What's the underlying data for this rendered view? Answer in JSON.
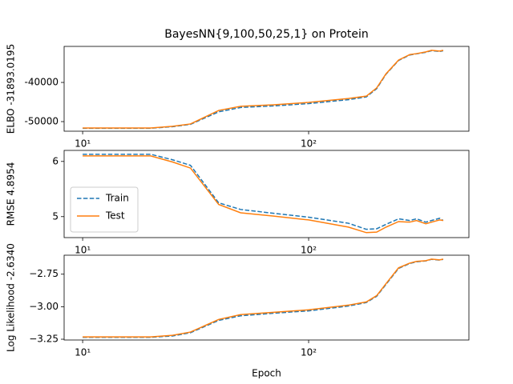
{
  "chart_data": [
    {
      "type": "line",
      "title": "BayesNN{9,100,50,25,1} on Protein",
      "y_label": "ELBO -31893.0195",
      "x": [
        10,
        20,
        25,
        30,
        40,
        50,
        70,
        100,
        150,
        180,
        200,
        220,
        250,
        280,
        300,
        330,
        350,
        380,
        394
      ],
      "series": [
        {
          "name": "Train",
          "color": "#1f77b4",
          "linestyle": "dashed",
          "values": [
            -51700,
            -51700,
            -51300,
            -50700,
            -47500,
            -46400,
            -46000,
            -45400,
            -44400,
            -43700,
            -41600,
            -37900,
            -34400,
            -33000,
            -32700,
            -32300,
            -31900,
            -32100,
            -31900
          ]
        },
        {
          "name": "Test",
          "color": "#ff7f0e",
          "linestyle": "solid",
          "values": [
            -51630,
            -51630,
            -51200,
            -50600,
            -47150,
            -46100,
            -45700,
            -45100,
            -44100,
            -43500,
            -41400,
            -37800,
            -34300,
            -32900,
            -32650,
            -32200,
            -31800,
            -32000,
            -31800
          ]
        }
      ],
      "xlim": [
        8.28,
        512
      ],
      "xticks": [
        {
          "value": 10,
          "label": "10¹"
        },
        {
          "value": 100,
          "label": "10²"
        }
      ],
      "log_x": true,
      "ylim": [
        -52450,
        -30800
      ],
      "yticks": [
        -50000,
        -40000
      ],
      "grid": false
    },
    {
      "type": "line",
      "y_label": "RMSE 4.8954",
      "x": [
        10,
        20,
        25,
        30,
        40,
        50,
        70,
        100,
        150,
        180,
        200,
        220,
        250,
        280,
        300,
        330,
        350,
        380,
        394
      ],
      "series": [
        {
          "name": "Train",
          "color": "#1f77b4",
          "linestyle": "dashed",
          "values": [
            6.13,
            6.13,
            6.03,
            5.93,
            5.25,
            5.13,
            5.06,
            4.99,
            4.88,
            4.77,
            4.78,
            4.86,
            4.96,
            4.93,
            4.96,
            4.9,
            4.93,
            4.97,
            4.93
          ]
        },
        {
          "name": "Test",
          "color": "#ff7f0e",
          "linestyle": "solid",
          "values": [
            6.1,
            6.1,
            5.99,
            5.88,
            5.22,
            5.07,
            5.01,
            4.94,
            4.81,
            4.71,
            4.72,
            4.81,
            4.91,
            4.9,
            4.93,
            4.87,
            4.9,
            4.94,
            4.93
          ]
        }
      ],
      "xlim": [
        8.28,
        512
      ],
      "xticks": [
        {
          "value": 10,
          "label": "10¹"
        },
        {
          "value": 100,
          "label": "10²"
        }
      ],
      "log_x": true,
      "ylim": [
        4.62,
        6.2
      ],
      "yticks": [
        5,
        6
      ],
      "grid": false,
      "legend": "lower left"
    },
    {
      "type": "line",
      "y_label": "Log Likelihood -2.6340",
      "x_label": "Epoch",
      "x": [
        10,
        20,
        25,
        30,
        40,
        50,
        70,
        100,
        150,
        180,
        200,
        220,
        250,
        280,
        300,
        330,
        350,
        380,
        394
      ],
      "series": [
        {
          "name": "Train",
          "color": "#1f77b4",
          "linestyle": "dashed",
          "values": [
            -3.235,
            -3.235,
            -3.225,
            -3.2,
            -3.105,
            -3.07,
            -3.05,
            -3.032,
            -2.995,
            -2.968,
            -2.92,
            -2.828,
            -2.706,
            -2.668,
            -2.655,
            -2.648,
            -2.636,
            -2.642,
            -2.636
          ]
        },
        {
          "name": "Test",
          "color": "#ff7f0e",
          "linestyle": "solid",
          "values": [
            -3.232,
            -3.232,
            -3.22,
            -3.195,
            -3.098,
            -3.061,
            -3.043,
            -3.024,
            -2.988,
            -2.963,
            -2.915,
            -2.823,
            -2.701,
            -2.665,
            -2.652,
            -2.646,
            -2.634,
            -2.64,
            -2.634
          ]
        }
      ],
      "xlim": [
        8.28,
        512
      ],
      "xticks": [
        {
          "value": 10,
          "label": "10¹"
        },
        {
          "value": 100,
          "label": "10²"
        }
      ],
      "log_x": true,
      "ylim": [
        -3.256,
        -2.604
      ],
      "yticks": [
        {
          "value": -3.25,
          "label": "−3.25"
        },
        {
          "value": -3,
          "label": "−3.00"
        },
        {
          "value": -2.75,
          "label": "−2.75"
        }
      ],
      "grid": false
    }
  ]
}
